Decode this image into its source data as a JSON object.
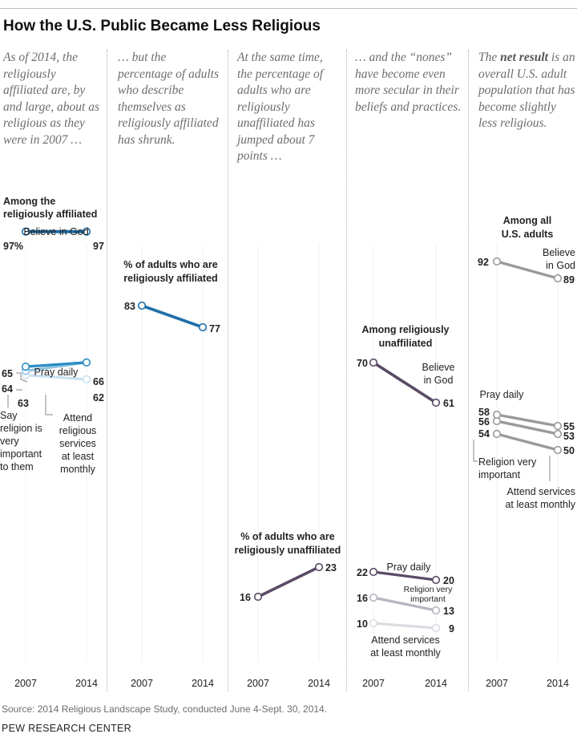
{
  "title": "How the U.S. Public Became Less Religious",
  "source": "Source: 2014 Religious Landscape Study, conducted June 4-Sept. 30, 2014.",
  "org": "PEW RESEARCH CENTER",
  "intros": [
    {
      "pre": "As of 2014, the religiously affiliated are, by and large, about as religious as they were in 2007 …",
      "bold": "",
      "post": ""
    },
    {
      "pre": "… but the percentage of adults who describe themselves as religiously affiliated has shrunk.",
      "bold": "",
      "post": ""
    },
    {
      "pre": "At the same time, the percentage of adults who are religiously unaffiliated has jumped about 7 points …",
      "bold": "",
      "post": ""
    },
    {
      "pre": "… and the “nones” have become even more secular in their beliefs and practices.",
      "bold": "",
      "post": ""
    },
    {
      "pre": "The ",
      "bold": "net result",
      "post": " is an overall U.S. adult population that has become slightly less religious."
    }
  ],
  "colors": {
    "affiliated_dark": "#1f6fa8",
    "affiliated_mid": "#2b8cc4",
    "affiliated_light": "#8fc3e0",
    "affiliated_pale": "#c9e2f1",
    "unaffiliated_dark": "#5a4b66",
    "unaffiliated_mid": "#b9b4bf",
    "unaffiliated_light": "#dedbe2",
    "all_adults": "#9a9a9a",
    "all_adults_light": "#b3b3b3"
  },
  "chart_data": [
    {
      "type": "line",
      "title": "Among the religiously affiliated",
      "x": [
        "2007",
        "2014"
      ],
      "series": [
        {
          "name": "Believe in God",
          "values": [
            97,
            97
          ],
          "value_labels": [
            "97%",
            "97"
          ]
        },
        {
          "name": "Pray daily",
          "values": [
            65,
            66
          ],
          "value_labels": [
            "65",
            "66"
          ]
        },
        {
          "name": "Say religion is very important to them",
          "values": [
            64,
            66
          ],
          "value_labels": [
            "64",
            ""
          ]
        },
        {
          "name": "Attend religious services at least monthly",
          "values": [
            63,
            62
          ],
          "value_labels": [
            "63",
            "62"
          ]
        }
      ]
    },
    {
      "type": "line",
      "title": "% of adults who are religiously affiliated",
      "x": [
        "2007",
        "2014"
      ],
      "series": [
        {
          "name": "",
          "values": [
            83,
            77
          ],
          "value_labels": [
            "83",
            "77"
          ]
        }
      ]
    },
    {
      "type": "line",
      "title": "% of adults who are religiously unaffiliated",
      "x": [
        "2007",
        "2014"
      ],
      "series": [
        {
          "name": "",
          "values": [
            16,
            23
          ],
          "value_labels": [
            "16",
            "23"
          ]
        }
      ]
    },
    {
      "type": "line",
      "title": "Among religiously unaffiliated",
      "x": [
        "2007",
        "2014"
      ],
      "series": [
        {
          "name": "Believe in God",
          "values": [
            70,
            61
          ],
          "value_labels": [
            "70",
            "61"
          ]
        },
        {
          "name": "Pray daily",
          "values": [
            22,
            20
          ],
          "value_labels": [
            "22",
            "20"
          ]
        },
        {
          "name": "Religion very important",
          "values": [
            16,
            13
          ],
          "value_labels": [
            "16",
            "13"
          ]
        },
        {
          "name": "Attend services at least monthly",
          "values": [
            10,
            9
          ],
          "value_labels": [
            "10",
            "9"
          ]
        }
      ]
    },
    {
      "type": "line",
      "title": "Among all U.S. adults",
      "x": [
        "2007",
        "2014"
      ],
      "series": [
        {
          "name": "Believe in God",
          "values": [
            92,
            89
          ],
          "value_labels": [
            "92",
            "89"
          ]
        },
        {
          "name": "Pray daily",
          "values": [
            58,
            55
          ],
          "value_labels": [
            "58",
            "55"
          ]
        },
        {
          "name": "Religion very important",
          "values": [
            56,
            53
          ],
          "value_labels": [
            "56",
            "53"
          ]
        },
        {
          "name": "Attend services at least monthly",
          "values": [
            54,
            50
          ],
          "value_labels": [
            "54",
            "50"
          ]
        }
      ]
    }
  ],
  "chart_text": {
    "p0_title_line1": "Among the",
    "p0_title_line2": "religiously affiliated",
    "p0_believe": "Believe in God",
    "p0_pray": "Pray daily",
    "p0_say": [
      "Say",
      "religion is",
      "very",
      "important",
      "to them"
    ],
    "p0_attend": [
      "Attend",
      "religious",
      "services",
      "at least",
      "monthly"
    ],
    "p1_title": [
      "% of adults who are",
      "religiously affiliated"
    ],
    "p2_title": [
      "% of adults who are",
      "religiously unaffiliated"
    ],
    "p3_title": [
      "Among religiously",
      "unaffiliated"
    ],
    "p3_believe": [
      "Believe",
      "in God"
    ],
    "p3_pray": "Pray daily",
    "p3_important": [
      "Religion very",
      "important"
    ],
    "p3_attend": [
      "Attend services",
      "at least monthly"
    ],
    "p4_title": [
      "Among all",
      "U.S. adults"
    ],
    "p4_believe": [
      "Believe",
      "in God"
    ],
    "p4_pray": "Pray daily",
    "p4_important": [
      "Religion very",
      "important"
    ],
    "p4_attend": [
      "Attend services",
      "at least monthly"
    ]
  }
}
